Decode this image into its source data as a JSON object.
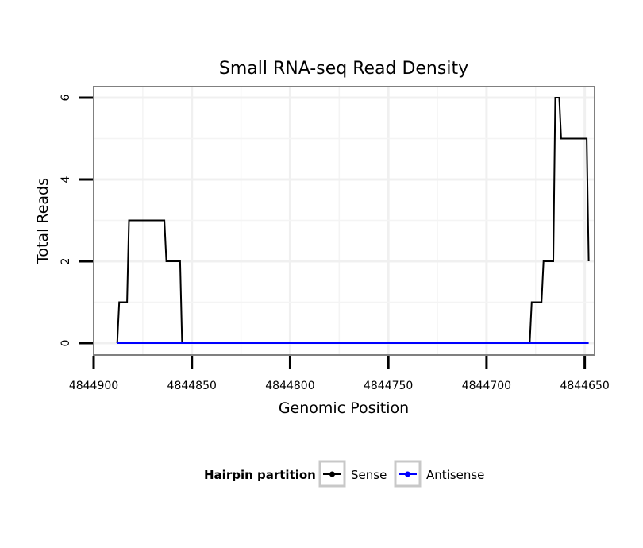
{
  "chart_data": {
    "type": "line",
    "title": "Small RNA-seq Read Density",
    "xlabel": "Genomic Position",
    "ylabel": "Total Reads",
    "xlim": [
      4844900,
      4844645
    ],
    "ylim": [
      0,
      6.25
    ],
    "x_ticks": [
      4844900,
      4844850,
      4844800,
      4844750,
      4844700,
      4844650
    ],
    "x_tick_labels": [
      "4844900",
      "4844850",
      "4844800",
      "4844750",
      "4844700",
      "4844650"
    ],
    "y_ticks": [
      0,
      2,
      4,
      6
    ],
    "y_tick_labels": [
      "0",
      "2",
      "4",
      "6"
    ],
    "grid": true,
    "legend_position": "bottom",
    "legend_title": "Hairpin partition",
    "series": [
      {
        "name": "Sense",
        "color": "#000000",
        "x": [
          4844888,
          4844887,
          4844884,
          4844883,
          4844882,
          4844881,
          4844864,
          4844863,
          4844857,
          4844856,
          4844855,
          4844854,
          4844678,
          4844677,
          4844672,
          4844671,
          4844666,
          4844665,
          4844663,
          4844662,
          4844660,
          4844659,
          4844649,
          4844648
        ],
        "y": [
          0,
          1,
          1,
          1,
          3,
          3,
          3,
          2,
          2,
          2,
          0,
          0,
          0,
          1,
          1,
          2,
          2,
          6,
          6,
          5,
          5,
          5,
          5,
          2
        ]
      },
      {
        "name": "Antisense",
        "color": "#0000ff",
        "x": [
          4844888,
          4844648
        ],
        "y": [
          0,
          0
        ]
      }
    ]
  }
}
